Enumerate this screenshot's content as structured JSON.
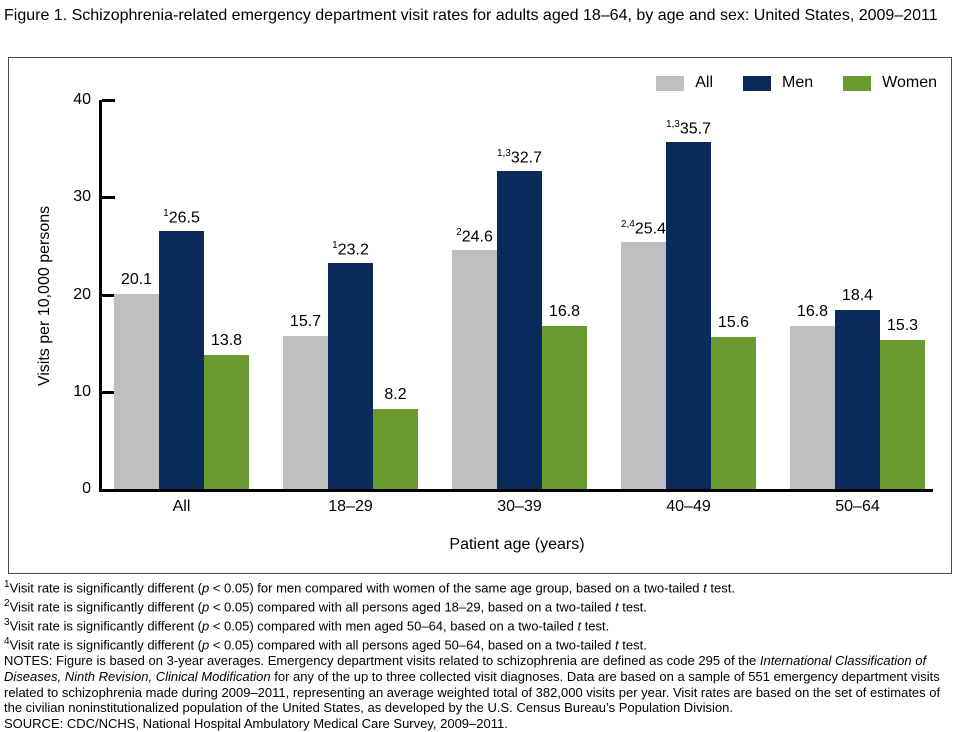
{
  "title": "Figure 1. Schizophrenia-related emergency department visit rates for adults aged 18–64, by age and sex: United States, 2009–2011",
  "chart_data": {
    "type": "bar",
    "categories": [
      "All",
      "18–29",
      "30–39",
      "40–49",
      "50–64"
    ],
    "series": [
      {
        "name": "All",
        "color": "#bfbfc2",
        "values": [
          20.1,
          15.7,
          24.6,
          25.4,
          16.8
        ],
        "label_sups": [
          "",
          "",
          "2",
          "2,4",
          ""
        ]
      },
      {
        "name": "Men",
        "color": "#0b2b5a",
        "values": [
          26.5,
          23.2,
          32.7,
          35.7,
          18.4
        ],
        "label_sups": [
          "1",
          "1",
          "1,3",
          "1,3",
          ""
        ]
      },
      {
        "name": "Women",
        "color": "#6b9b30",
        "values": [
          13.8,
          8.2,
          16.8,
          15.6,
          15.3
        ],
        "label_sups": [
          "",
          "",
          "",
          "",
          ""
        ]
      }
    ],
    "xlabel": "Patient age (years)",
    "ylabel": "Visits per 10,000 persons",
    "ylim": [
      0,
      40
    ],
    "yticks": [
      0,
      10,
      20,
      30,
      40
    ],
    "grid": false,
    "legend_position": "top-right"
  },
  "footnotes": [
    {
      "sup": "1",
      "segments": [
        {
          "t": "Visit rate is significantly different ("
        },
        {
          "t": "p",
          "i": true
        },
        {
          "t": " < 0.05) for men compared with women of the same age group, based on a two-tailed "
        },
        {
          "t": "t",
          "i": true
        },
        {
          "t": " test."
        }
      ]
    },
    {
      "sup": "2",
      "segments": [
        {
          "t": "Visit rate is significantly different ("
        },
        {
          "t": "p",
          "i": true
        },
        {
          "t": " < 0.05) compared with all persons aged 18–29, based on a two-tailed "
        },
        {
          "t": "t",
          "i": true
        },
        {
          "t": " test."
        }
      ]
    },
    {
      "sup": "3",
      "segments": [
        {
          "t": "Visit rate is significantly different ("
        },
        {
          "t": "p",
          "i": true
        },
        {
          "t": " < 0.05) compared with men aged 50–64, based on a two-tailed "
        },
        {
          "t": "t",
          "i": true
        },
        {
          "t": " test."
        }
      ]
    },
    {
      "sup": "4",
      "segments": [
        {
          "t": "Visit rate is significantly different ("
        },
        {
          "t": "p",
          "i": true
        },
        {
          "t": " < 0.05) compared with all persons aged 50–64, based on a two-tailed "
        },
        {
          "t": "t",
          "i": true
        },
        {
          "t": " test."
        }
      ]
    }
  ],
  "notes_segments": [
    {
      "t": "NOTES: Figure is based on 3-year averages. Emergency department visits related to schizophrenia are defined as code 295 of the "
    },
    {
      "t": "International Classification of Diseases, Ninth Revision, Clinical Modification",
      "i": true
    },
    {
      "t": " for any of the up to three collected visit diagnoses. Data are based on a sample of 551 emergency department visits related to schizophrenia made during 2009–2011, representing an average weighted total of 382,000 visits per year. Visit rates are based on the set of estimates of the civilian noninstitutionalized population of the United States, as developed by the U.S. Census Bureau’s Population Division."
    }
  ],
  "source": "SOURCE: CDC/NCHS, National Hospital Ambulatory Medical Care Survey, 2009–2011."
}
